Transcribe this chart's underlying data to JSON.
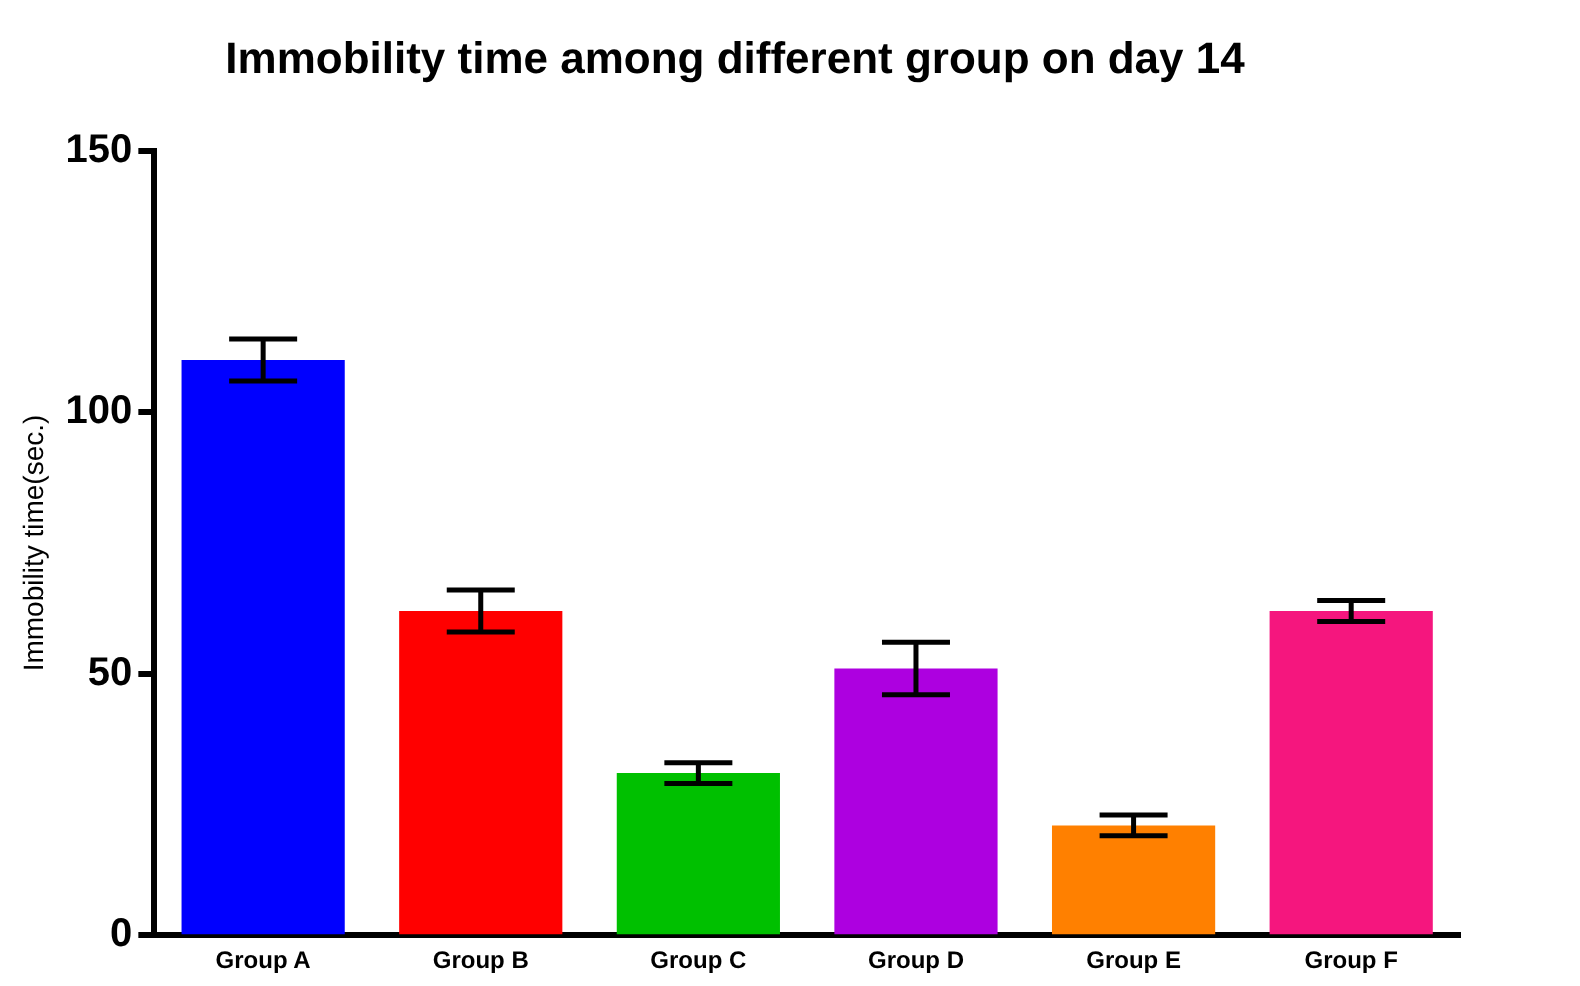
{
  "chart_data": {
    "type": "bar",
    "title": "Immobility time among different group on day 14",
    "ylabel": "Immobility time(sec.)",
    "categories": [
      "Group A",
      "Group B",
      "Group C",
      "Group D",
      "Group E",
      "Group F"
    ],
    "values": [
      110,
      62,
      31,
      51,
      21,
      62
    ],
    "errors": [
      4,
      4,
      2,
      5,
      2,
      2
    ],
    "colors": [
      "#0000ff",
      "#ff0000",
      "#00c000",
      "#ad00e0",
      "#ff8000",
      "#f5167e"
    ],
    "ylim": [
      0,
      150
    ],
    "yticks": [
      0,
      50,
      100,
      150
    ],
    "grid": false,
    "legend": false
  }
}
